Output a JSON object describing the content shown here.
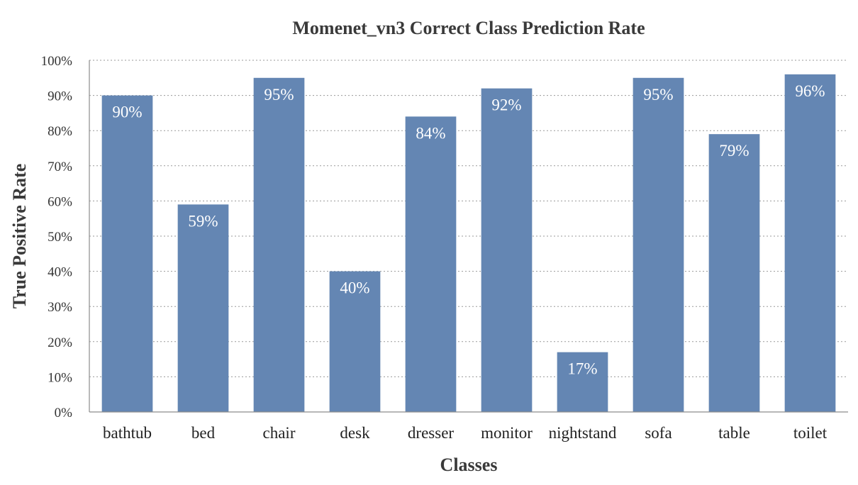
{
  "chart_data": {
    "type": "bar",
    "title": "Momenet_vn3 Correct Class Prediction Rate",
    "xlabel": "Classes",
    "ylabel": "True Positive Rate",
    "categories": [
      "bathtub",
      "bed",
      "chair",
      "desk",
      "dresser",
      "monitor",
      "nightstand",
      "sofa",
      "table",
      "toilet"
    ],
    "values": [
      90,
      59,
      95,
      40,
      84,
      92,
      17,
      95,
      79,
      96
    ],
    "data_labels": [
      "90%",
      "59%",
      "95%",
      "40%",
      "84%",
      "92%",
      "17%",
      "95%",
      "79%",
      "96%"
    ],
    "ylim": [
      0,
      100
    ],
    "yticks": [
      0,
      10,
      20,
      30,
      40,
      50,
      60,
      70,
      80,
      90,
      100
    ],
    "ytick_labels": [
      "0%",
      "10%",
      "20%",
      "30%",
      "40%",
      "50%",
      "60%",
      "70%",
      "80%",
      "90%",
      "100%"
    ],
    "grid": true,
    "legend": "none",
    "bar_color": "#6486b3"
  }
}
